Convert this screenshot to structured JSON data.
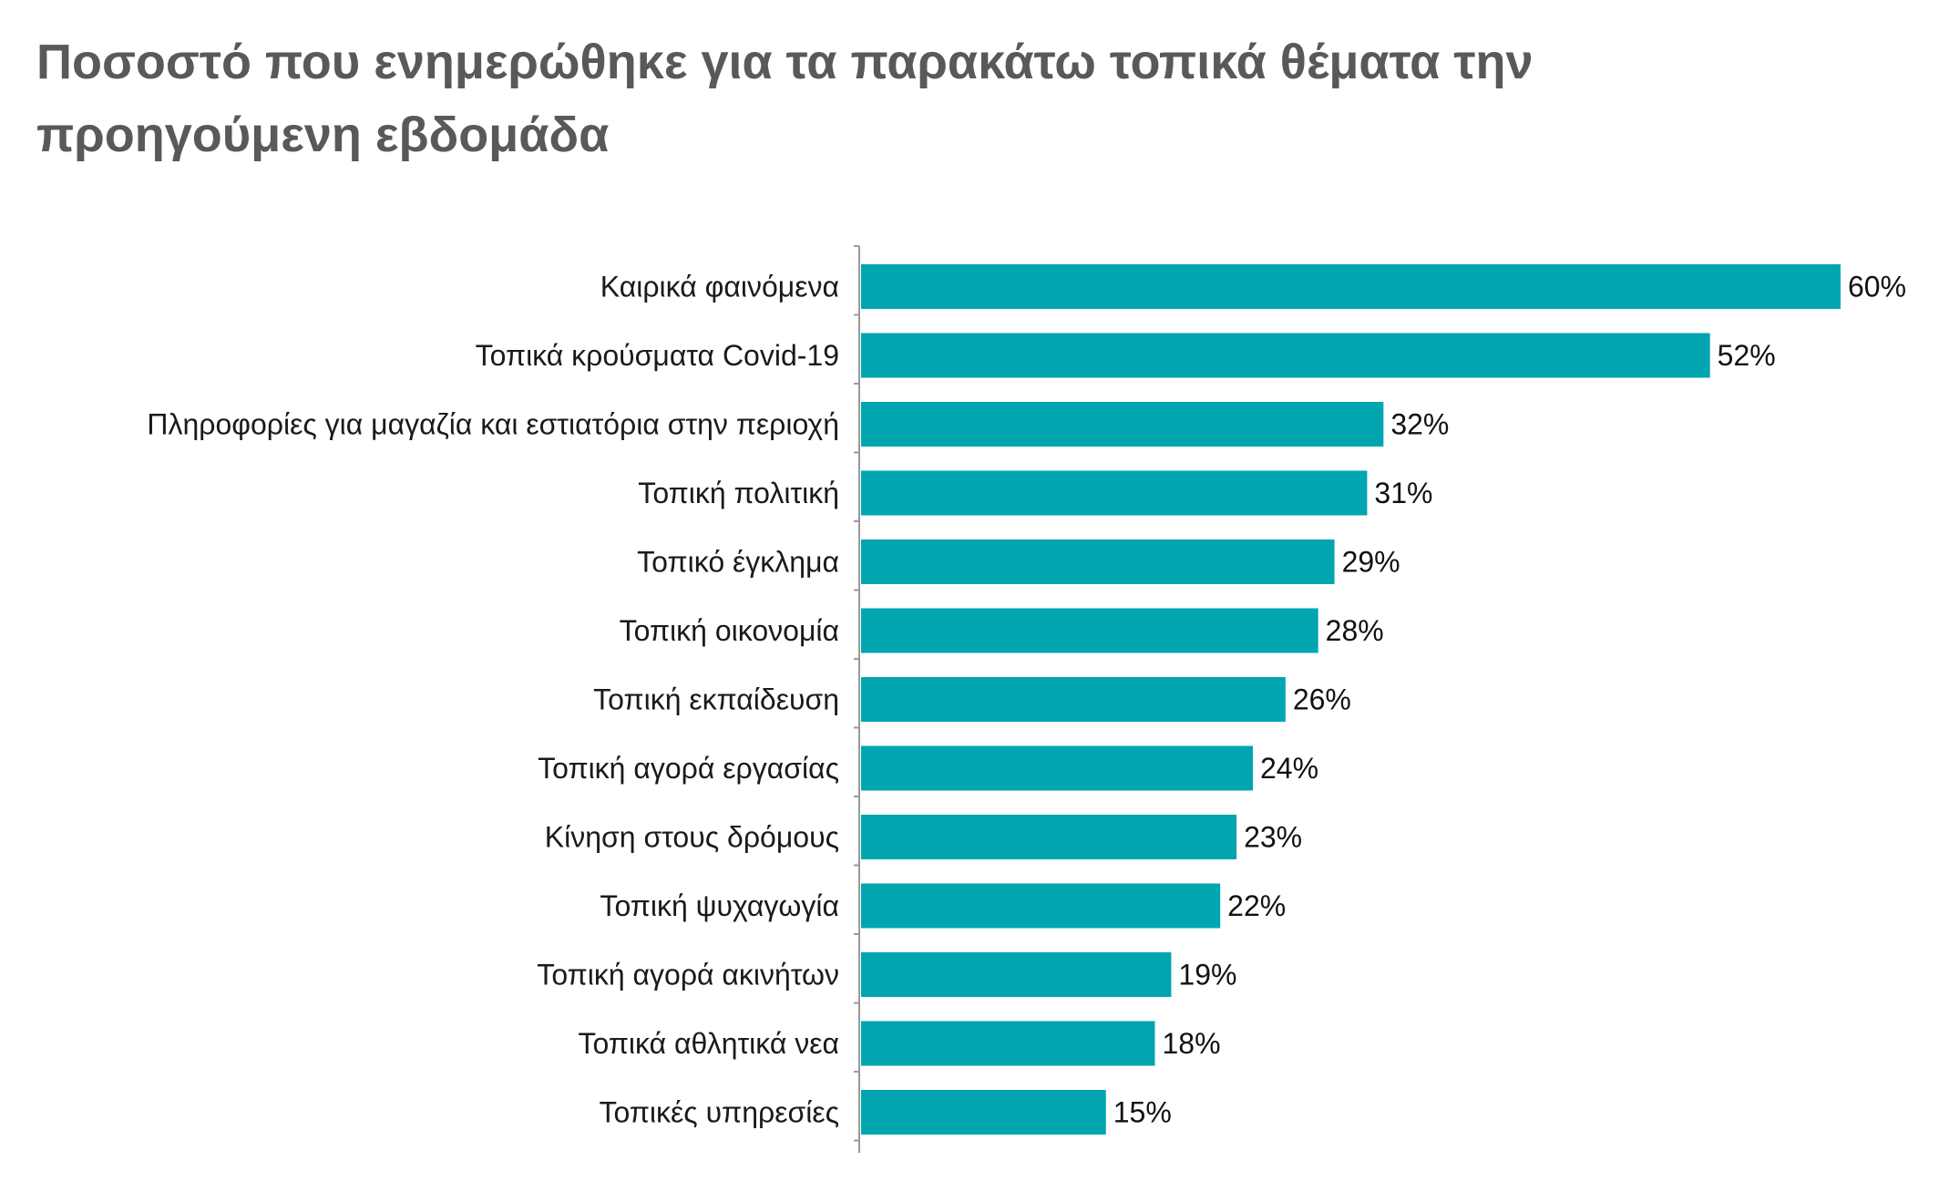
{
  "chart_data": {
    "type": "bar",
    "orientation": "horizontal",
    "title": "Ποσοστό που ενημερώθηκε για τα παρακάτω τοπικά θέματα την προηγούμενη εβδομάδα",
    "categories": [
      "Καιρικά φαινόμενα",
      "Τοπικά κρούσματα Covid-19",
      "Πληροφορίες για μαγαζία και εστιατόρια στην περιοχή",
      "Τοπική πολιτική",
      "Τοπικό έγκλημα",
      "Τοπική οικονομία",
      "Τοπική εκπαίδευση",
      "Τοπική αγορά εργασίας",
      "Κίνηση στους δρόμους",
      "Τοπική ψυχαγωγία",
      "Τοπική αγορά ακινήτων",
      "Τοπικά αθλητικά νεα",
      "Τοπικές υπηρεσίες"
    ],
    "values": [
      60,
      52,
      32,
      31,
      29,
      28,
      26,
      24,
      23,
      22,
      19,
      18,
      15
    ],
    "value_labels": [
      "60%",
      "52%",
      "32%",
      "31%",
      "29%",
      "28%",
      "26%",
      "24%",
      "23%",
      "22%",
      "19%",
      "18%",
      "15%"
    ],
    "xlim": [
      0,
      60
    ],
    "bar_color": "#00a5b0",
    "grid": false,
    "legend": "none"
  }
}
